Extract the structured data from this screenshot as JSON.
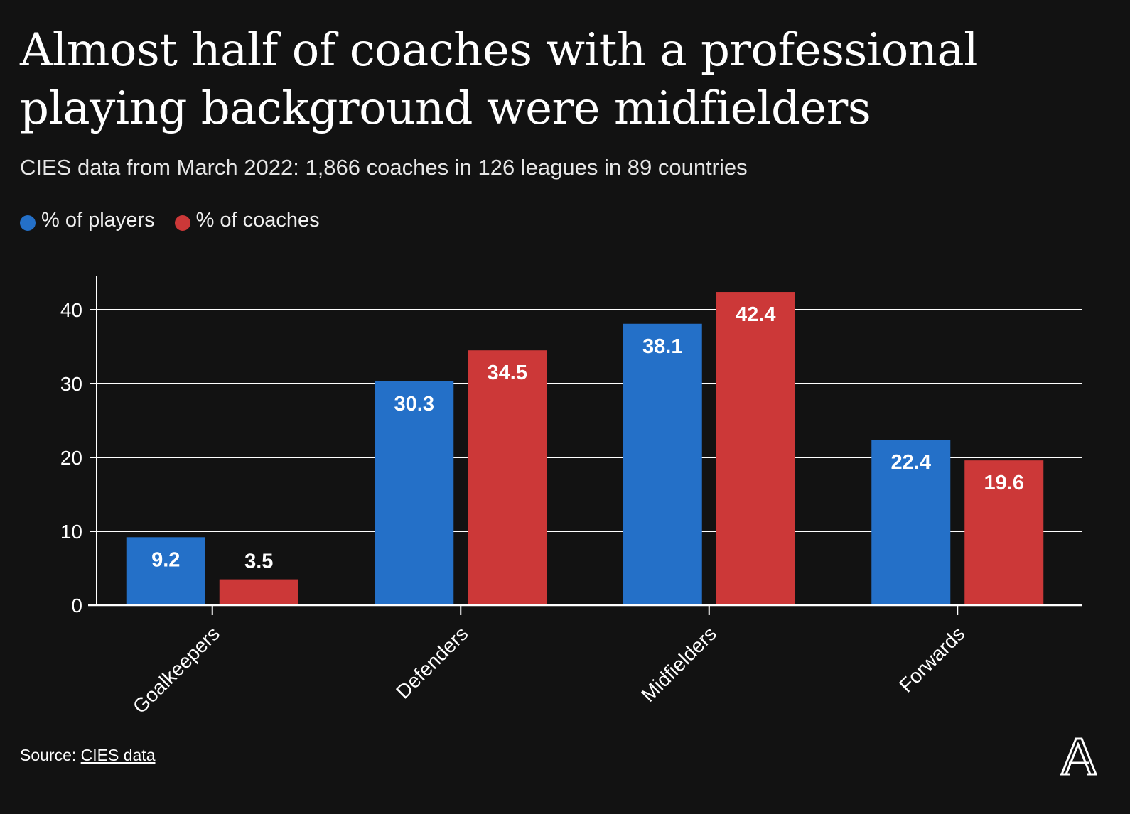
{
  "title": "Almost half of coaches with a professional playing background were midfielders",
  "subtitle": "CIES data from March 2022: 1,866 coaches in 126 leagues in 89 countries",
  "legend": [
    {
      "label": "% of players",
      "color": "#2470c8"
    },
    {
      "label": "% of coaches",
      "color": "#cc3838"
    }
  ],
  "source": {
    "prefix": "Source: ",
    "link_text": "CIES data"
  },
  "logo_icon": "athletic-logo-icon",
  "chart_data": {
    "type": "bar",
    "categories": [
      "Goalkeepers",
      "Defenders",
      "Midfielders",
      "Forwards"
    ],
    "series": [
      {
        "name": "% of players",
        "color": "#2470c8",
        "values": [
          9.2,
          30.3,
          38.1,
          22.4
        ]
      },
      {
        "name": "% of coaches",
        "color": "#cc3838",
        "values": [
          3.5,
          34.5,
          42.4,
          19.6
        ]
      }
    ],
    "yticks": [
      0,
      10,
      20,
      30,
      40
    ],
    "ylim": [
      0,
      45
    ],
    "grid": true,
    "legend_position": "top-left",
    "xlabel": "",
    "ylabel": ""
  }
}
